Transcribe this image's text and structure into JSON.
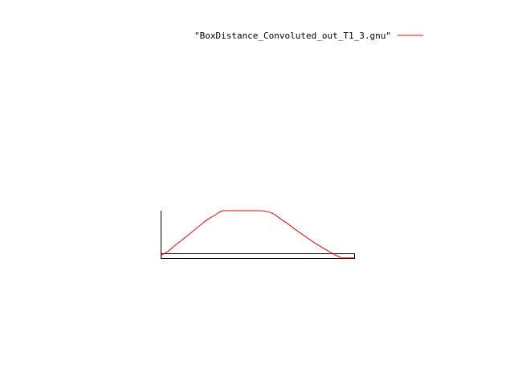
{
  "chart_data": {
    "type": "line",
    "title": "",
    "xlabel": "",
    "ylabel": "",
    "legend": {
      "placement": "top-right",
      "entries": [
        "\"BoxDistance_Convoluted_out_T1_3.gnu\""
      ]
    },
    "xlim": [
      0,
      100
    ],
    "ylim": [
      0,
      1
    ],
    "grid": false,
    "series": [
      {
        "name": "\"BoxDistance_Convoluted_out_T1_3.gnu\"",
        "color": "#ff0000",
        "x": [
          0,
          4,
          8,
          12,
          16,
          20,
          24,
          28,
          30,
          32,
          34,
          35,
          36,
          38,
          40,
          44,
          48,
          52,
          54,
          56,
          58,
          60,
          62,
          66,
          70,
          74,
          78,
          82,
          86,
          90,
          92,
          94,
          96,
          98,
          100
        ],
        "y": [
          0.0,
          0.1,
          0.25,
          0.38,
          0.52,
          0.66,
          0.8,
          0.9,
          0.96,
          1.0,
          1.0,
          1.0,
          1.0,
          1.0,
          1.0,
          1.0,
          1.0,
          1.0,
          0.99,
          0.97,
          0.94,
          0.88,
          0.82,
          0.7,
          0.57,
          0.45,
          0.33,
          0.22,
          0.12,
          0.02,
          -0.02,
          -0.05,
          -0.05,
          -0.05,
          -0.05
        ]
      }
    ]
  }
}
